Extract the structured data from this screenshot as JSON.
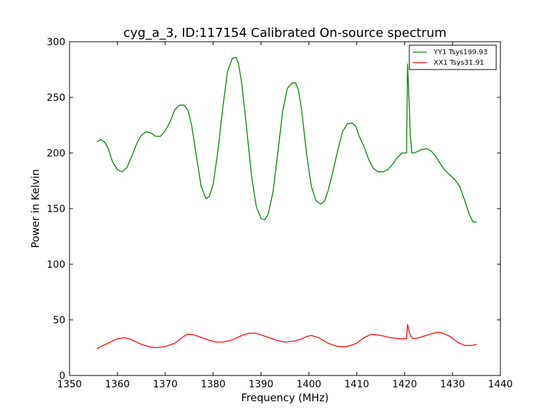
{
  "chart_data": {
    "type": "line",
    "title": "cyg_a_3, ID:117154 Calibrated On-source spectrum",
    "xlabel": "Frequency (MHz)",
    "ylabel": "Power in Kelvin",
    "xlim": [
      1350,
      1440
    ],
    "ylim": [
      0,
      300
    ],
    "xticks": [
      1350,
      1360,
      1370,
      1380,
      1390,
      1400,
      1410,
      1420,
      1430,
      1440
    ],
    "yticks": [
      0,
      50,
      100,
      150,
      200,
      250,
      300
    ],
    "grid": false,
    "legend_position": "top-right",
    "series": [
      {
        "name": "YY1 Tsys199.93",
        "color": "#008000",
        "x": [
          1355.7,
          1356.5,
          1357.3,
          1358,
          1359,
          1360,
          1361,
          1362,
          1363,
          1364,
          1365,
          1366,
          1367,
          1368,
          1369,
          1370,
          1371,
          1372,
          1373,
          1374,
          1374.8,
          1375.5,
          1376.5,
          1377.5,
          1378.5,
          1379.2,
          1380,
          1381,
          1382,
          1383,
          1384,
          1384.8,
          1385.3,
          1386,
          1387,
          1388,
          1389,
          1390,
          1390.8,
          1391.5,
          1392.5,
          1393.5,
          1394.5,
          1395.5,
          1396.5,
          1397.2,
          1397.8,
          1398.5,
          1399.5,
          1400.5,
          1401.5,
          1402.5,
          1403.3,
          1404,
          1405,
          1406,
          1407,
          1408,
          1409,
          1409.8,
          1410.5,
          1411.5,
          1412.5,
          1413.5,
          1414.5,
          1415.5,
          1416.5,
          1417.5,
          1418.5,
          1419.5,
          1420.4,
          1420.6,
          1420.9,
          1421.2,
          1421.5,
          1421.9,
          1422.5,
          1423.5,
          1424.5,
          1425.5,
          1426.5,
          1427.5,
          1428.5,
          1429.5,
          1430.5,
          1431.5,
          1432.5,
          1433.5,
          1434.3,
          1435
        ],
        "y": [
          210,
          212,
          210,
          205,
          192,
          185,
          183,
          187,
          197,
          208,
          216,
          219,
          218,
          215,
          215,
          220,
          228,
          239,
          243,
          243,
          238,
          225,
          197,
          170,
          159,
          161,
          172,
          202,
          240,
          273,
          285,
          286,
          280,
          262,
          222,
          180,
          152,
          141,
          140,
          145,
          165,
          200,
          237,
          258,
          263,
          263,
          257,
          238,
          200,
          170,
          157,
          154,
          157,
          166,
          183,
          202,
          219,
          226,
          227,
          224,
          215,
          206,
          194,
          186,
          183,
          183,
          185,
          190,
          196,
          200,
          200,
          280,
          250,
          215,
          200,
          200,
          201,
          203,
          204,
          202,
          197,
          190,
          184,
          180,
          176,
          170,
          158,
          145,
          138,
          138
        ],
        "annotation": null
      },
      {
        "name": "XX1 Tsys31.91",
        "color": "#ff0000",
        "x": [
          1355.7,
          1357,
          1358.5,
          1360,
          1361.5,
          1362.5,
          1363.5,
          1365,
          1366.5,
          1368,
          1370,
          1372,
          1373.5,
          1374.5,
          1375.5,
          1377,
          1379,
          1380.5,
          1382,
          1384,
          1386,
          1387.5,
          1389,
          1391,
          1393,
          1395,
          1397,
          1398.5,
          1399.5,
          1400.5,
          1402,
          1404,
          1406,
          1408,
          1410,
          1411.5,
          1413,
          1415,
          1417,
          1419,
          1420.4,
          1420.6,
          1420.9,
          1421.3,
          1421.8,
          1423,
          1424.5,
          1426,
          1427,
          1428,
          1429.5,
          1431,
          1432.5,
          1434,
          1435
        ],
        "y": [
          24,
          27,
          30,
          33,
          34,
          33,
          31,
          28,
          26,
          25,
          26,
          29,
          34,
          37,
          37,
          35,
          32,
          30,
          30,
          32,
          36,
          38,
          38,
          35,
          32,
          30,
          31,
          33,
          35,
          36,
          34,
          29,
          26,
          26,
          29,
          34,
          37,
          36,
          34,
          33,
          33,
          46,
          40,
          35,
          33,
          34,
          36,
          38,
          39,
          38,
          35,
          30,
          27,
          27,
          28
        ],
        "annotation": null
      }
    ]
  }
}
